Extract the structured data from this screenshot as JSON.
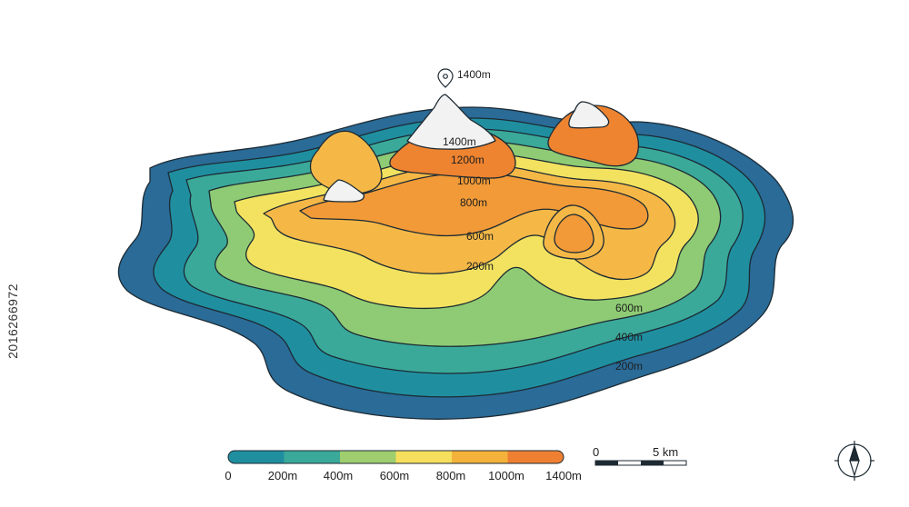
{
  "map": {
    "contour_labels": [
      {
        "text": "1400m"
      },
      {
        "text": "1200m"
      },
      {
        "text": "1000m"
      },
      {
        "text": "800m"
      },
      {
        "text": "600m"
      },
      {
        "text": "200m"
      },
      {
        "text": "600m"
      },
      {
        "text": "400m"
      },
      {
        "text": "200m"
      }
    ],
    "peak_marker_label": "1400m"
  },
  "legend": {
    "colors": [
      "#1f8fa0",
      "#3aa99a",
      "#9fce6e",
      "#f6df5c",
      "#f4b23a",
      "#ef8032"
    ],
    "labels": [
      "0",
      "200m",
      "400m",
      "600m",
      "800m",
      "1000m",
      "1400m"
    ]
  },
  "scale_bar": {
    "start_label": "0",
    "end_label": "5 km"
  },
  "compass": {
    "icon": "compass-icon"
  },
  "stock_id": "2016266972",
  "palette": {
    "water_outer": "#2a6b97",
    "level_0": "#1f8fa0",
    "level_200": "#3aa99a",
    "level_400": "#8ecb74",
    "level_600": "#f2e25f",
    "level_800": "#f5b847",
    "level_1000": "#f19a37",
    "level_1200": "#ee8330",
    "snow": "#f2f2f2",
    "outline": "#1d2a33"
  }
}
